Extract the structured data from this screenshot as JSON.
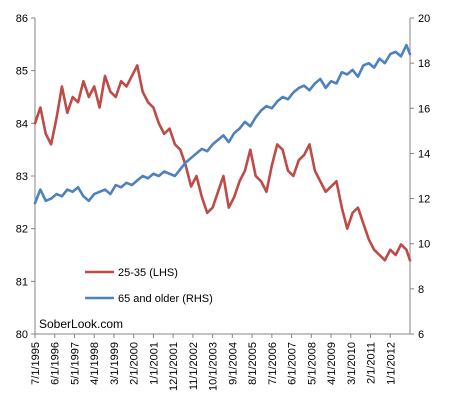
{
  "chart_data": {
    "type": "line",
    "dual_axis": true,
    "left_axis": {
      "min": 80,
      "max": 86,
      "ticks": [
        80,
        81,
        82,
        83,
        84,
        85,
        86
      ]
    },
    "right_axis": {
      "min": 6,
      "max": 20,
      "ticks": [
        6,
        8,
        10,
        12,
        14,
        16,
        18,
        20
      ]
    },
    "x_axis": {
      "start": "7/1/1995",
      "end": "12/1/2012",
      "tick_labels": [
        "7/1/1995",
        "6/1/1996",
        "5/1/1997",
        "4/1/1998",
        "3/1/1999",
        "2/1/2000",
        "1/1/2001",
        "12/1/2001",
        "11/1/2002",
        "10/1/2003",
        "9/1/2004",
        "8/1/2005",
        "7/1/2006",
        "6/1/2007",
        "5/1/2008",
        "4/1/2009",
        "3/1/2010",
        "2/1/2011",
        "1/1/2012"
      ]
    },
    "grid": false,
    "legend_position": "bottom-left",
    "watermark": "SoberLook.com",
    "series": [
      {
        "name": "25-35 (LHS)",
        "axis": "left",
        "color": "#be4b48",
        "x": [
          "1995-07",
          "1995-10",
          "1996-01",
          "1996-04",
          "1996-07",
          "1996-10",
          "1997-01",
          "1997-04",
          "1997-07",
          "1997-10",
          "1998-01",
          "1998-04",
          "1998-07",
          "1998-10",
          "1999-01",
          "1999-04",
          "1999-07",
          "1999-10",
          "2000-01",
          "2000-04",
          "2000-07",
          "2000-10",
          "2001-01",
          "2001-04",
          "2001-07",
          "2001-10",
          "2002-01",
          "2002-04",
          "2002-07",
          "2002-10",
          "2003-01",
          "2003-04",
          "2003-07",
          "2003-10",
          "2004-01",
          "2004-04",
          "2004-07",
          "2004-10",
          "2005-01",
          "2005-04",
          "2005-07",
          "2005-10",
          "2006-01",
          "2006-04",
          "2006-07",
          "2006-10",
          "2007-01",
          "2007-04",
          "2007-07",
          "2007-10",
          "2008-01",
          "2008-04",
          "2008-07",
          "2008-10",
          "2009-01",
          "2009-04",
          "2009-07",
          "2009-10",
          "2010-01",
          "2010-04",
          "2010-07",
          "2010-10",
          "2011-01",
          "2011-04",
          "2011-07",
          "2011-10",
          "2012-01",
          "2012-04",
          "2012-07",
          "2012-10",
          "2012-12"
        ],
        "values": [
          84.0,
          84.3,
          83.8,
          83.6,
          84.1,
          84.7,
          84.2,
          84.5,
          84.4,
          84.8,
          84.5,
          84.7,
          84.3,
          84.9,
          84.6,
          84.5,
          84.8,
          84.7,
          84.9,
          85.1,
          84.6,
          84.4,
          84.3,
          84.0,
          83.8,
          83.9,
          83.6,
          83.5,
          83.2,
          82.8,
          83.0,
          82.6,
          82.3,
          82.4,
          82.7,
          83.0,
          82.4,
          82.6,
          82.9,
          83.1,
          83.5,
          83.0,
          82.9,
          82.7,
          83.2,
          83.6,
          83.5,
          83.1,
          83.0,
          83.3,
          83.4,
          83.6,
          83.1,
          82.9,
          82.7,
          82.8,
          82.9,
          82.4,
          82.0,
          82.3,
          82.4,
          82.1,
          81.8,
          81.6,
          81.5,
          81.4,
          81.6,
          81.5,
          81.7,
          81.6,
          81.4
        ]
      },
      {
        "name": "65 and older (RHS)",
        "axis": "right",
        "color": "#4f81bd",
        "x": [
          "1995-07",
          "1995-10",
          "1996-01",
          "1996-04",
          "1996-07",
          "1996-10",
          "1997-01",
          "1997-04",
          "1997-07",
          "1997-10",
          "1998-01",
          "1998-04",
          "1998-07",
          "1998-10",
          "1999-01",
          "1999-04",
          "1999-07",
          "1999-10",
          "2000-01",
          "2000-04",
          "2000-07",
          "2000-10",
          "2001-01",
          "2001-04",
          "2001-07",
          "2001-10",
          "2002-01",
          "2002-04",
          "2002-07",
          "2002-10",
          "2003-01",
          "2003-04",
          "2003-07",
          "2003-10",
          "2004-01",
          "2004-04",
          "2004-07",
          "2004-10",
          "2005-01",
          "2005-04",
          "2005-07",
          "2005-10",
          "2006-01",
          "2006-04",
          "2006-07",
          "2006-10",
          "2007-01",
          "2007-04",
          "2007-07",
          "2007-10",
          "2008-01",
          "2008-04",
          "2008-07",
          "2008-10",
          "2009-01",
          "2009-04",
          "2009-07",
          "2009-10",
          "2010-01",
          "2010-04",
          "2010-07",
          "2010-10",
          "2011-01",
          "2011-04",
          "2011-07",
          "2011-10",
          "2012-01",
          "2012-04",
          "2012-07",
          "2012-10",
          "2012-12"
        ],
        "values": [
          11.8,
          12.4,
          11.9,
          12.0,
          12.2,
          12.1,
          12.4,
          12.3,
          12.5,
          12.1,
          11.9,
          12.2,
          12.3,
          12.4,
          12.2,
          12.6,
          12.5,
          12.7,
          12.6,
          12.8,
          13.0,
          12.9,
          13.1,
          13.0,
          13.2,
          13.1,
          13.0,
          13.3,
          13.6,
          13.8,
          14.0,
          14.2,
          14.1,
          14.4,
          14.6,
          14.8,
          14.5,
          14.9,
          15.1,
          15.4,
          15.2,
          15.6,
          15.9,
          16.1,
          16.0,
          16.3,
          16.5,
          16.4,
          16.7,
          16.9,
          17.0,
          16.8,
          17.1,
          17.3,
          16.9,
          17.2,
          17.1,
          17.6,
          17.5,
          17.7,
          17.4,
          17.9,
          18.0,
          17.8,
          18.2,
          18.0,
          18.4,
          18.5,
          18.3,
          18.8,
          18.4
        ]
      }
    ]
  }
}
